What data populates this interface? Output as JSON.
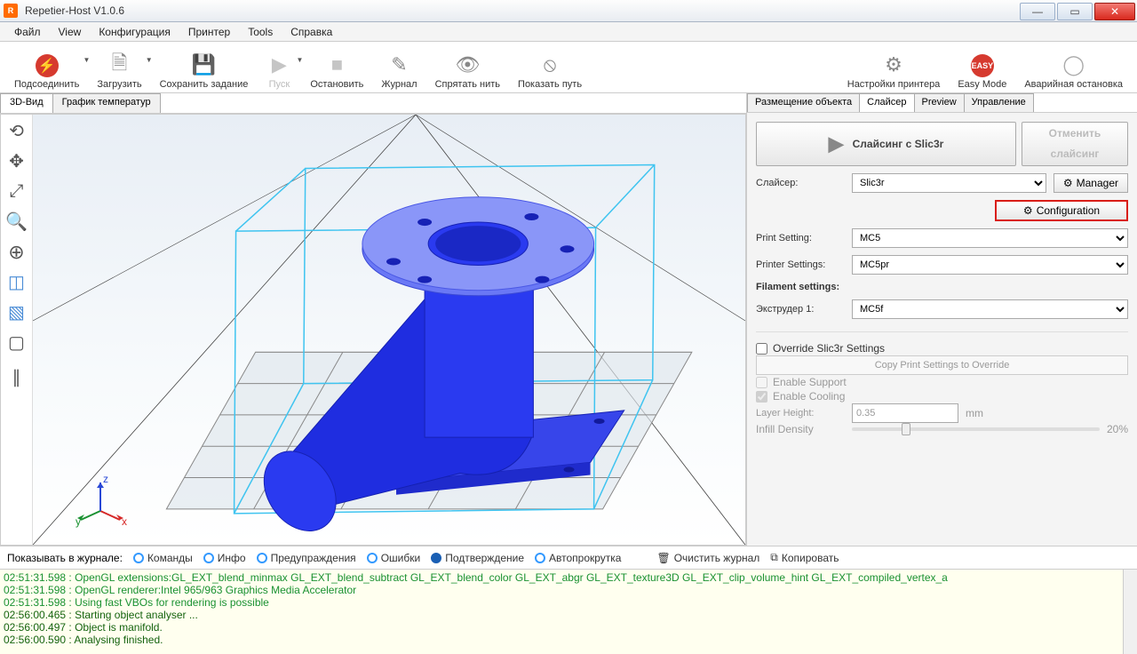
{
  "window": {
    "title": "Repetier-Host V1.0.6"
  },
  "menu": {
    "items": [
      "Файл",
      "View",
      "Конфигурация",
      "Принтер",
      "Tools",
      "Справка"
    ]
  },
  "toolbar": {
    "connect": "Подсоединить",
    "load": "Загрузить",
    "save": "Сохранить задание",
    "run": "Пуск",
    "stop": "Остановить",
    "log": "Журнал",
    "hide": "Спрятать нить",
    "path": "Показать путь",
    "psettings": "Настройки принтера",
    "easy": "Easy Mode",
    "estop": "Аварийная остановка"
  },
  "viewtabs": {
    "d3": "3D-Вид",
    "temp": "График температур"
  },
  "righttabs": {
    "place": "Размещение объекта",
    "slicer": "Слайсер",
    "preview": "Preview",
    "ctrl": "Управление"
  },
  "slicer": {
    "slicebtn": "Слайсинг с Slic3r",
    "cancel1": "Отменить",
    "cancel2": "слайсинг",
    "slicer_lbl": "Слайсер:",
    "slicer_val": "Slic3r",
    "manager": "Manager",
    "config": "Configuration",
    "print_lbl": "Print Setting:",
    "print_val": "MC5",
    "printer_lbl": "Printer Settings:",
    "printer_val": "MC5pr",
    "filament_lbl": "Filament settings:",
    "ext_lbl": "Экструдер 1:",
    "ext_val": "MC5f",
    "override": "Override Slic3r Settings",
    "copybtn": "Copy Print Settings to Override",
    "support": "Enable Support",
    "cooling": "Enable Cooling",
    "layer_lbl": "Layer Height:",
    "layer_val": "0.35",
    "layer_unit": "mm",
    "infill_lbl": "Infill Density",
    "infill_val": "20%"
  },
  "logbar": {
    "show": "Показывать в журнале:",
    "cmds": "Команды",
    "info": "Инфо",
    "warn": "Предупраждения",
    "err": "Ошибки",
    "ack": "Подтверждение",
    "auto": "Автопрокрутка",
    "clear": "Очистить журнал",
    "copy": "Копировать"
  },
  "loglines": [
    {
      "ts": "02:51:31.598",
      "msg": "OpenGL extensions:GL_EXT_blend_minmax GL_EXT_blend_subtract GL_EXT_blend_color GL_EXT_abgr GL_EXT_texture3D GL_EXT_clip_volume_hint GL_EXT_compiled_vertex_a"
    },
    {
      "ts": "02:51:31.598",
      "msg": "OpenGL renderer:Intel 965/963 Graphics Media Accelerator"
    },
    {
      "ts": "02:51:31.598",
      "msg": "Using fast VBOs for rendering is possible"
    },
    {
      "ts": "02:56:00.465",
      "msg": "Starting object analyser ..."
    },
    {
      "ts": "02:56:00.497",
      "msg": "Object is manifold."
    },
    {
      "ts": "02:56:00.590",
      "msg": "Analysing finished."
    }
  ],
  "viewport": {
    "bg_colors": [
      "#e8eef5",
      "#f7fafc",
      "#ffffff"
    ],
    "model_color": "#2838e8",
    "bbox_color": "#3fc4f0",
    "grid_color": "#888888"
  }
}
